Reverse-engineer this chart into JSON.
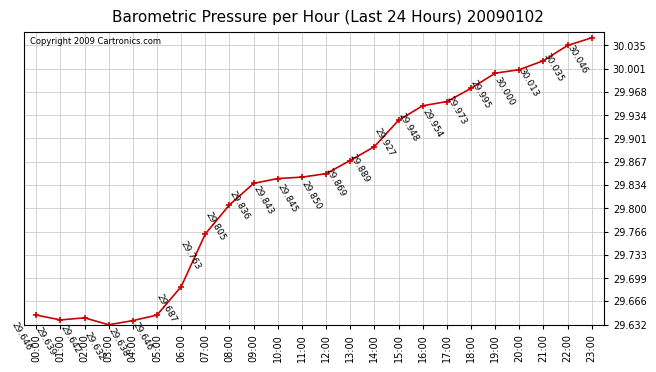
{
  "title": "Barometric Pressure per Hour (Last 24 Hours) 20090102",
  "copyright": "Copyright 2009 Cartronics.com",
  "hours": [
    "00:00",
    "01:00",
    "02:00",
    "03:00",
    "04:00",
    "05:00",
    "06:00",
    "07:00",
    "08:00",
    "09:00",
    "10:00",
    "11:00",
    "12:00",
    "13:00",
    "14:00",
    "15:00",
    "16:00",
    "17:00",
    "18:00",
    "19:00",
    "20:00",
    "21:00",
    "22:00",
    "23:00"
  ],
  "values": [
    29.646,
    29.639,
    29.642,
    29.632,
    29.638,
    29.646,
    29.687,
    29.763,
    29.805,
    29.836,
    29.843,
    29.845,
    29.85,
    29.869,
    29.889,
    29.927,
    29.948,
    29.954,
    29.973,
    29.995,
    30.0,
    30.013,
    30.035,
    30.046
  ],
  "ylim_min": 29.632,
  "ylim_max": 30.046,
  "yticks": [
    29.632,
    29.666,
    29.699,
    29.733,
    29.766,
    29.8,
    29.834,
    29.867,
    29.901,
    29.934,
    29.968,
    30.001,
    30.035
  ],
  "line_color": "#cc0000",
  "marker_color": "#cc0000",
  "bg_color": "#ffffff",
  "grid_color": "#cccccc",
  "title_fontsize": 11,
  "label_fontsize": 7,
  "annotation_fontsize": 6.5,
  "annotation_rotation": -60
}
